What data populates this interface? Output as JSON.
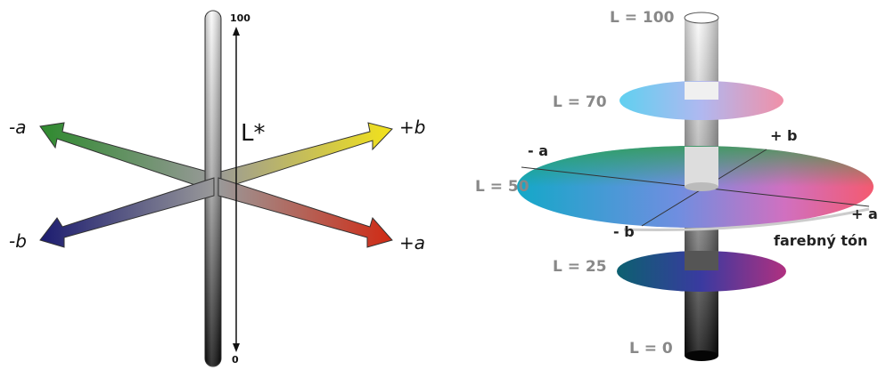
{
  "left": {
    "axis_l_label": "L*",
    "l_max": "100",
    "l_min": "0",
    "minus_a": "-a",
    "plus_b": "+b",
    "minus_b": "-b",
    "plus_a": "+a"
  },
  "right": {
    "l100": "L = 100",
    "l70": "L = 70",
    "l50": "L = 50",
    "l25": "L = 25",
    "l0": "L = 0",
    "minus_a": "- a",
    "plus_b": "+ b",
    "minus_b": "- b",
    "plus_a": "+ a",
    "hue": "farebný tón"
  }
}
